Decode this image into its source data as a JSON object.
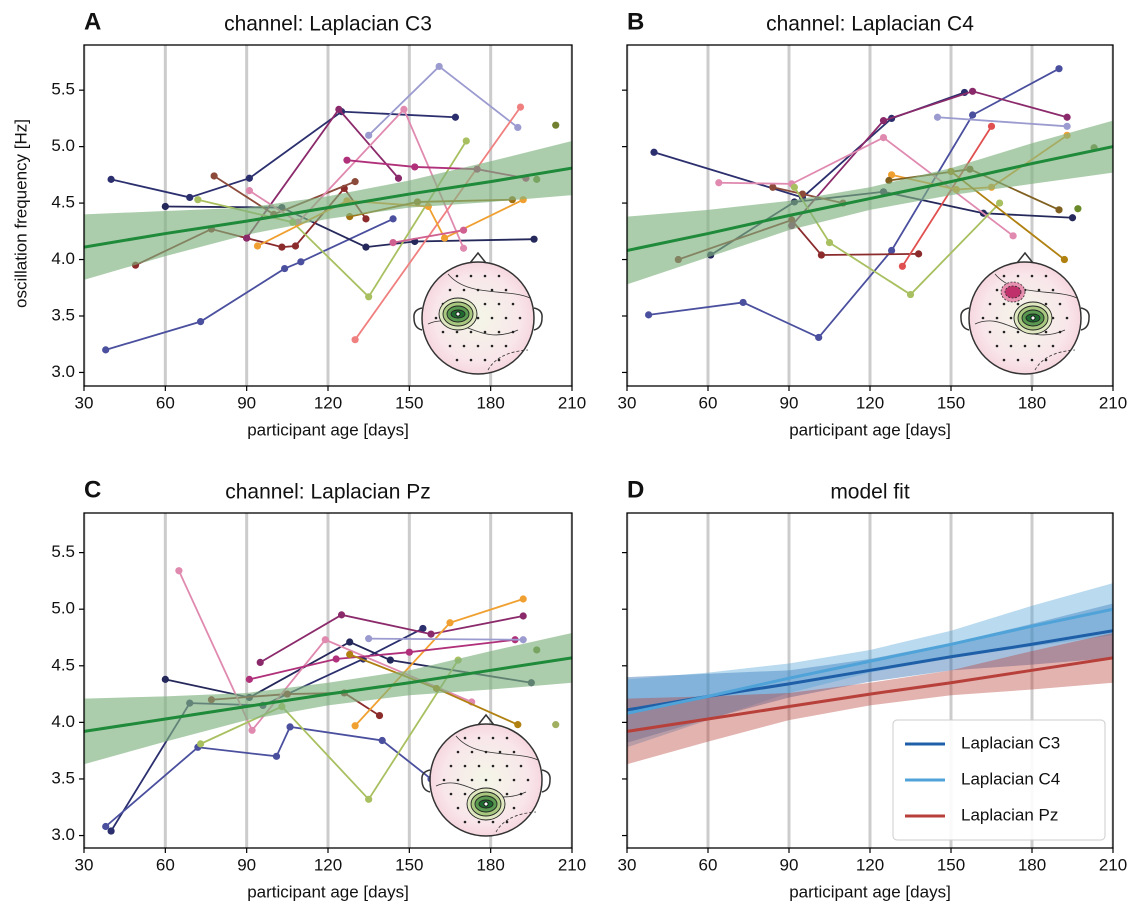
{
  "chart_data": [
    {
      "type": "line",
      "panel": "A",
      "title": "channel: Laplacian C3",
      "x_label": "participant age [days]",
      "y_label": "oscillation frequency [Hz]",
      "xlim": [
        30,
        210
      ],
      "xticks": [
        30,
        60,
        90,
        120,
        150,
        180,
        210
      ],
      "ylim": [
        2.88,
        5.9
      ],
      "yticks": [
        {
          "value": 3,
          "label": "3.0"
        },
        {
          "value": 3.5,
          "label": "3.5"
        },
        {
          "value": 4,
          "label": "4.0"
        },
        {
          "value": 4.5,
          "label": "4.5"
        },
        {
          "value": 5,
          "label": "5.0"
        },
        {
          "value": 5.5,
          "label": "5.5"
        }
      ],
      "show_ytick_labels": true,
      "grid": "x",
      "series": [
        {
          "color": "#2b2f6e",
          "x": [
            40,
            69,
            91,
            125,
            167
          ],
          "values": [
            4.71,
            4.55,
            4.72,
            5.31,
            5.26
          ]
        },
        {
          "color": "#4a4f9e",
          "x": [
            38,
            73,
            104,
            110,
            144
          ],
          "values": [
            3.2,
            3.45,
            3.92,
            3.98,
            4.36
          ]
        },
        {
          "color": "#25285a",
          "x": [
            60,
            103,
            134,
            152,
            196
          ],
          "values": [
            4.47,
            4.46,
            4.11,
            4.16,
            4.18
          ]
        },
        {
          "color": "#8b2b2b",
          "x": [
            49,
            77,
            90,
            103,
            108,
            126,
            134
          ],
          "values": [
            3.95,
            4.27,
            4.19,
            4.11,
            4.12,
            4.63,
            4.36
          ]
        },
        {
          "color": "#8b4a3a",
          "x": [
            78,
            100,
            130
          ],
          "values": [
            4.74,
            4.4,
            4.69
          ]
        },
        {
          "color": "#8b2a6b",
          "x": [
            90,
            124,
            146
          ],
          "values": [
            4.19,
            5.33,
            4.72
          ]
        },
        {
          "color": "#9b9bd0",
          "x": [
            135,
            161,
            190
          ],
          "values": [
            5.1,
            5.71,
            5.17
          ]
        },
        {
          "color": "#e08ab0",
          "x": [
            91,
            109,
            148,
            170
          ],
          "values": [
            4.61,
            4.33,
            5.33,
            4.1
          ]
        },
        {
          "color": "#f08080",
          "x": [
            130,
            191
          ],
          "values": [
            3.29,
            5.35
          ]
        },
        {
          "color": "#a8c060",
          "x": [
            72,
            107,
            135,
            171
          ],
          "values": [
            4.53,
            4.33,
            3.67,
            5.05
          ]
        },
        {
          "color": "#f0a030",
          "x": [
            94,
            127,
            157,
            163,
            192
          ],
          "values": [
            4.12,
            4.52,
            4.47,
            4.19,
            4.53
          ]
        },
        {
          "color": "#a07010",
          "x": [
            128,
            153,
            188
          ],
          "values": [
            4.38,
            4.51,
            4.53
          ]
        },
        {
          "color": "#b0307a",
          "x": [
            127,
            152,
            175,
            193
          ],
          "values": [
            4.88,
            4.82,
            4.8,
            4.72
          ]
        },
        {
          "color": "#d06090",
          "x": [
            144,
            170
          ],
          "values": [
            4.15,
            4.26
          ]
        },
        {
          "color": "#708030",
          "x": [
            204
          ],
          "values": [
            5.19
          ]
        },
        {
          "color": "#6a8a2a",
          "x": [
            197
          ],
          "values": [
            4.71
          ]
        }
      ],
      "fit": {
        "color": "#1e8a3a",
        "band_color": "#7fb27f",
        "x": [
          30,
          60,
          90,
          120,
          150,
          180,
          210
        ],
        "values": [
          4.11,
          4.23,
          4.34,
          4.46,
          4.58,
          4.69,
          4.81
        ],
        "band_lower": [
          3.82,
          4.03,
          4.22,
          4.36,
          4.46,
          4.51,
          4.57
        ],
        "band_upper": [
          4.4,
          4.43,
          4.46,
          4.56,
          4.7,
          4.87,
          5.05
        ]
      }
    },
    {
      "type": "line",
      "panel": "B",
      "title": "channel: Laplacian C4",
      "x_label": "participant age [days]",
      "xlim": [
        30,
        210
      ],
      "xticks": [
        30,
        60,
        90,
        120,
        150,
        180,
        210
      ],
      "ylim": [
        2.88,
        5.9
      ],
      "yticks": [
        3,
        3.5,
        4,
        4.5,
        5,
        5.5
      ],
      "show_ytick_labels": false,
      "grid": "x",
      "series": [
        {
          "color": "#2b2f6e",
          "x": [
            40,
            95,
            128,
            155
          ],
          "values": [
            4.95,
            4.55,
            5.25,
            5.48
          ]
        },
        {
          "color": "#25285a",
          "x": [
            61,
            92,
            125,
            162,
            195
          ],
          "values": [
            4.04,
            4.51,
            4.6,
            4.41,
            4.37
          ]
        },
        {
          "color": "#4a4f9e",
          "x": [
            38,
            73,
            101,
            128,
            158,
            190
          ],
          "values": [
            3.51,
            3.62,
            3.31,
            4.08,
            5.28,
            5.69
          ]
        },
        {
          "color": "#8b2b2b",
          "x": [
            49,
            91,
            102,
            138
          ],
          "values": [
            4.0,
            4.35,
            4.04,
            4.05
          ]
        },
        {
          "color": "#8b4a3a",
          "x": [
            84,
            95,
            110
          ],
          "values": [
            4.64,
            4.58,
            4.5
          ]
        },
        {
          "color": "#8b2a6b",
          "x": [
            91,
            125,
            158,
            193
          ],
          "values": [
            4.3,
            5.23,
            5.49,
            5.26
          ]
        },
        {
          "color": "#9b9bd0",
          "x": [
            145,
            193
          ],
          "values": [
            5.26,
            5.18
          ]
        },
        {
          "color": "#e08ab0",
          "x": [
            64,
            91,
            125,
            173
          ],
          "values": [
            4.68,
            4.67,
            5.08,
            4.21
          ]
        },
        {
          "color": "#e05050",
          "x": [
            132,
            165
          ],
          "values": [
            3.94,
            5.18
          ]
        },
        {
          "color": "#a8c060",
          "x": [
            92,
            105,
            135,
            168
          ],
          "values": [
            4.64,
            4.15,
            3.69,
            4.5
          ]
        },
        {
          "color": "#f0a030",
          "x": [
            128,
            152,
            165,
            193
          ],
          "values": [
            4.75,
            4.62,
            4.64,
            5.1
          ]
        },
        {
          "color": "#806020",
          "x": [
            127,
            157,
            190
          ],
          "values": [
            4.7,
            4.8,
            4.44
          ]
        },
        {
          "color": "#b08010",
          "x": [
            150,
            192
          ],
          "values": [
            4.78,
            4.0
          ]
        },
        {
          "color": "#6a8a2a",
          "x": [
            197
          ],
          "values": [
            4.45
          ]
        },
        {
          "color": "#708030",
          "x": [
            203
          ],
          "values": [
            4.99
          ]
        }
      ],
      "fit": {
        "color": "#1e8a3a",
        "band_color": "#7fb27f",
        "x": [
          30,
          60,
          90,
          120,
          150,
          180,
          210
        ],
        "values": [
          4.08,
          4.23,
          4.39,
          4.54,
          4.69,
          4.85,
          5.0
        ],
        "band_lower": [
          3.78,
          4.02,
          4.26,
          4.44,
          4.57,
          4.67,
          4.77
        ],
        "band_upper": [
          4.38,
          4.44,
          4.52,
          4.64,
          4.81,
          5.03,
          5.23
        ]
      }
    },
    {
      "type": "line",
      "panel": "C",
      "title": "channel: Laplacian Pz",
      "x_label": "participant age [days]",
      "xlim": [
        30,
        210
      ],
      "xticks": [
        30,
        60,
        90,
        120,
        150,
        180,
        210
      ],
      "ylim": [
        2.89,
        5.85
      ],
      "yticks": [
        {
          "value": 3,
          "label": "3.0"
        },
        {
          "value": 3.5,
          "label": "3.5"
        },
        {
          "value": 4,
          "label": "4.0"
        },
        {
          "value": 4.5,
          "label": "4.5"
        },
        {
          "value": 5,
          "label": "5.0"
        },
        {
          "value": 5.5,
          "label": "5.5"
        }
      ],
      "show_ytick_labels": true,
      "grid": "x",
      "series": [
        {
          "color": "#2b2f6e",
          "x": [
            40,
            69,
            96,
            133,
            155
          ],
          "values": [
            3.04,
            4.17,
            4.15,
            4.56,
            4.83
          ]
        },
        {
          "color": "#25285a",
          "x": [
            60,
            91,
            128,
            143,
            195
          ],
          "values": [
            4.38,
            4.22,
            4.71,
            4.55,
            4.35
          ]
        },
        {
          "color": "#4a4f9e",
          "x": [
            38,
            72,
            101,
            106,
            140,
            158
          ],
          "values": [
            3.08,
            3.78,
            3.7,
            3.96,
            3.84,
            3.5
          ]
        },
        {
          "color": "#8b2b2b",
          "x": [
            77,
            105,
            126,
            139
          ],
          "values": [
            4.2,
            4.25,
            4.26,
            4.06
          ]
        },
        {
          "color": "#8b2a6b",
          "x": [
            95,
            125,
            158,
            192
          ],
          "values": [
            4.53,
            4.95,
            4.78,
            4.94
          ]
        },
        {
          "color": "#e08ab0",
          "x": [
            65,
            92,
            119,
            173
          ],
          "values": [
            5.34,
            3.93,
            4.73,
            4.18
          ]
        },
        {
          "color": "#a8c060",
          "x": [
            73,
            103,
            135,
            168
          ],
          "values": [
            3.81,
            4.14,
            3.32,
            4.55
          ]
        },
        {
          "color": "#f0a030",
          "x": [
            130,
            165,
            192
          ],
          "values": [
            3.97,
            4.88,
            5.09
          ]
        },
        {
          "color": "#b0307a",
          "x": [
            91,
            123,
            150,
            189
          ],
          "values": [
            4.38,
            4.56,
            4.62,
            4.73
          ]
        },
        {
          "color": "#9b9bd0",
          "x": [
            135,
            192
          ],
          "values": [
            4.74,
            4.73
          ]
        },
        {
          "color": "#b08010",
          "x": [
            128,
            160,
            190
          ],
          "values": [
            4.6,
            4.3,
            3.98
          ]
        },
        {
          "color": "#6a8a2a",
          "x": [
            197
          ],
          "values": [
            4.64
          ]
        },
        {
          "color": "#a0b060",
          "x": [
            204
          ],
          "values": [
            3.98
          ]
        }
      ],
      "fit": {
        "color": "#1e8a3a",
        "band_color": "#7fb27f",
        "x": [
          30,
          60,
          90,
          120,
          150,
          180,
          210
        ],
        "values": [
          3.92,
          4.03,
          4.14,
          4.25,
          4.35,
          4.46,
          4.57
        ],
        "band_lower": [
          3.63,
          3.83,
          4.02,
          4.15,
          4.24,
          4.29,
          4.35
        ],
        "band_upper": [
          4.21,
          4.23,
          4.26,
          4.35,
          4.46,
          4.63,
          4.79
        ]
      }
    },
    {
      "type": "fit",
      "panel": "D",
      "title": "model fit",
      "x_label": "participant age [days]",
      "xlim": [
        30,
        210
      ],
      "xticks": [
        30,
        60,
        90,
        120,
        150,
        180,
        210
      ],
      "ylim": [
        2.89,
        5.85
      ],
      "yticks": [
        3,
        3.5,
        4,
        4.5,
        5,
        5.5
      ],
      "show_ytick_labels": false,
      "grid": "x",
      "legend": "lower right",
      "series": [
        {
          "name": "Laplacian C3",
          "color": "#1f5fa8",
          "x": [
            30,
            60,
            90,
            120,
            150,
            180,
            210
          ],
          "values": [
            4.11,
            4.23,
            4.34,
            4.46,
            4.58,
            4.69,
            4.81
          ],
          "band_lower": [
            3.82,
            4.03,
            4.22,
            4.36,
            4.46,
            4.51,
            4.57
          ],
          "band_upper": [
            4.4,
            4.43,
            4.46,
            4.56,
            4.7,
            4.87,
            5.05
          ]
        },
        {
          "name": "Laplacian C4",
          "color": "#4fa3d8",
          "x": [
            30,
            60,
            90,
            120,
            150,
            180,
            210
          ],
          "values": [
            4.08,
            4.23,
            4.39,
            4.54,
            4.69,
            4.85,
            5.0
          ],
          "band_lower": [
            3.78,
            4.02,
            4.26,
            4.44,
            4.57,
            4.67,
            4.77
          ],
          "band_upper": [
            4.38,
            4.44,
            4.52,
            4.64,
            4.81,
            5.03,
            5.23
          ]
        },
        {
          "name": "Laplacian Pz",
          "color": "#b8403a",
          "x": [
            30,
            60,
            90,
            120,
            150,
            180,
            210
          ],
          "values": [
            3.92,
            4.03,
            4.14,
            4.25,
            4.35,
            4.46,
            4.57
          ],
          "band_lower": [
            3.63,
            3.83,
            4.02,
            4.15,
            4.24,
            4.29,
            4.35
          ],
          "band_upper": [
            4.21,
            4.23,
            4.26,
            4.35,
            4.46,
            4.63,
            4.79
          ]
        }
      ]
    }
  ]
}
